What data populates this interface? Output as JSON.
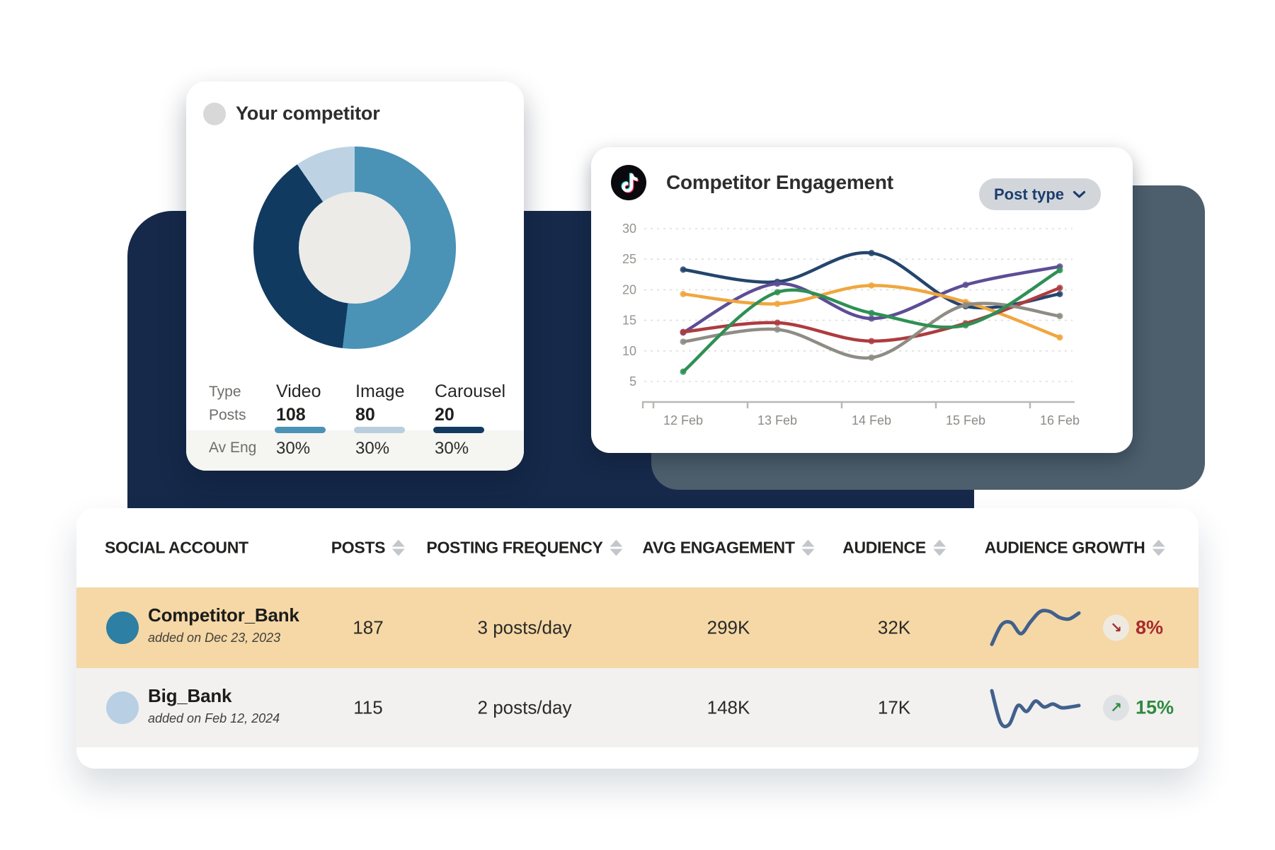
{
  "colors": {
    "panel": "#16294a",
    "card_backdrop": "#4d5e6c",
    "aveng_strip": "#f5f5f2",
    "sparkline": "#42608c",
    "sort_icon": "#c3c7cb"
  },
  "competitor_card": {
    "title": "Your competitor",
    "stats": {
      "row_labels": [
        "Type",
        "Posts",
        "Av Eng"
      ],
      "columns": [
        {
          "type": "Video",
          "posts": "108",
          "avg_eng": "30%",
          "bar_color": "#4a92b6"
        },
        {
          "type": "Image",
          "posts": "80",
          "avg_eng": "30%",
          "bar_color": "#b9cede"
        },
        {
          "type": "Carousel",
          "posts": "20",
          "avg_eng": "30%",
          "bar_color": "#123a61"
        }
      ]
    }
  },
  "engagement_card": {
    "title": "Competitor Engagement",
    "platform_icon": "tiktok-icon",
    "filter_button": {
      "label": "Post type"
    }
  },
  "chart_data": [
    {
      "type": "pie",
      "title": "Your competitor",
      "labels": [
        "Video",
        "Image",
        "Carousel"
      ],
      "values": [
        108,
        80,
        20
      ],
      "colors": [
        "#4a92b6",
        "#103a60",
        "#bdd3e3"
      ],
      "hole_color": "#ecebe8",
      "donut": true
    },
    {
      "type": "line",
      "title": "Competitor Engagement",
      "x": [
        "12 Feb",
        "13 Feb",
        "14 Feb",
        "15 Feb",
        "16 Feb"
      ],
      "ylim": [
        0,
        30
      ],
      "yticks": [
        30,
        25,
        20,
        15,
        10,
        5
      ],
      "grid": "dashed-horizontal",
      "legend": "none",
      "series": [
        {
          "color": "#24456d",
          "values": [
            23.3,
            21.3,
            26.0,
            17.3,
            19.3
          ]
        },
        {
          "color": "#5d4d96",
          "values": [
            13.0,
            21.0,
            15.3,
            20.8,
            23.8
          ]
        },
        {
          "color": "#f0a63e",
          "values": [
            19.3,
            17.7,
            20.7,
            18.0,
            12.2
          ]
        },
        {
          "color": "#ad3c3f",
          "values": [
            13.1,
            14.6,
            11.6,
            14.5,
            20.3
          ]
        },
        {
          "color": "#8f8c85",
          "values": [
            11.5,
            13.5,
            8.9,
            17.5,
            15.7
          ]
        },
        {
          "color": "#2f9054",
          "values": [
            6.6,
            19.6,
            16.2,
            14.2,
            23.2
          ]
        }
      ]
    }
  ],
  "table": {
    "columns": [
      {
        "label": "SOCIAL ACCOUNT",
        "sortable": false
      },
      {
        "label": "POSTS",
        "sortable": true
      },
      {
        "label": "POSTING FREQUENCY",
        "sortable": true
      },
      {
        "label": "AVG ENGAGEMENT",
        "sortable": true
      },
      {
        "label": "AUDIENCE",
        "sortable": true
      },
      {
        "label": "AUDIENCE GROWTH",
        "sortable": true
      }
    ],
    "rows": [
      {
        "account": "Competitor_Bank",
        "added": "added on Dec 23, 2023",
        "avatar_color": "#2d7fa3",
        "row_color": "#f5d8a6",
        "posts": "187",
        "posting_frequency": "3 posts/day",
        "avg_engagement": "299K",
        "audience": "32K",
        "growth_value": "8%",
        "growth_direction": "down",
        "growth_arrow": "↘",
        "growth_color": "#a62b30",
        "bubble_color": "#efeae0",
        "sparkline": [
          95,
          42,
          36,
          66,
          34,
          6,
          6,
          22,
          26,
          10
        ]
      },
      {
        "account": "Big_Bank",
        "added": "added on Feb 12, 2024",
        "avatar_color": "#b9cfe4",
        "row_color": "#f2f1ef",
        "posts": "115",
        "posting_frequency": "2 posts/day",
        "avg_engagement": "148K",
        "audience": "17K",
        "growth_value": "15%",
        "growth_direction": "up",
        "growth_arrow": "↗",
        "growth_color": "#2e8b3f",
        "bubble_color": "#dfe2e5",
        "sparkline": [
          4,
          90,
          95,
          44,
          60,
          32,
          48,
          40,
          50,
          48,
          44
        ]
      }
    ]
  }
}
